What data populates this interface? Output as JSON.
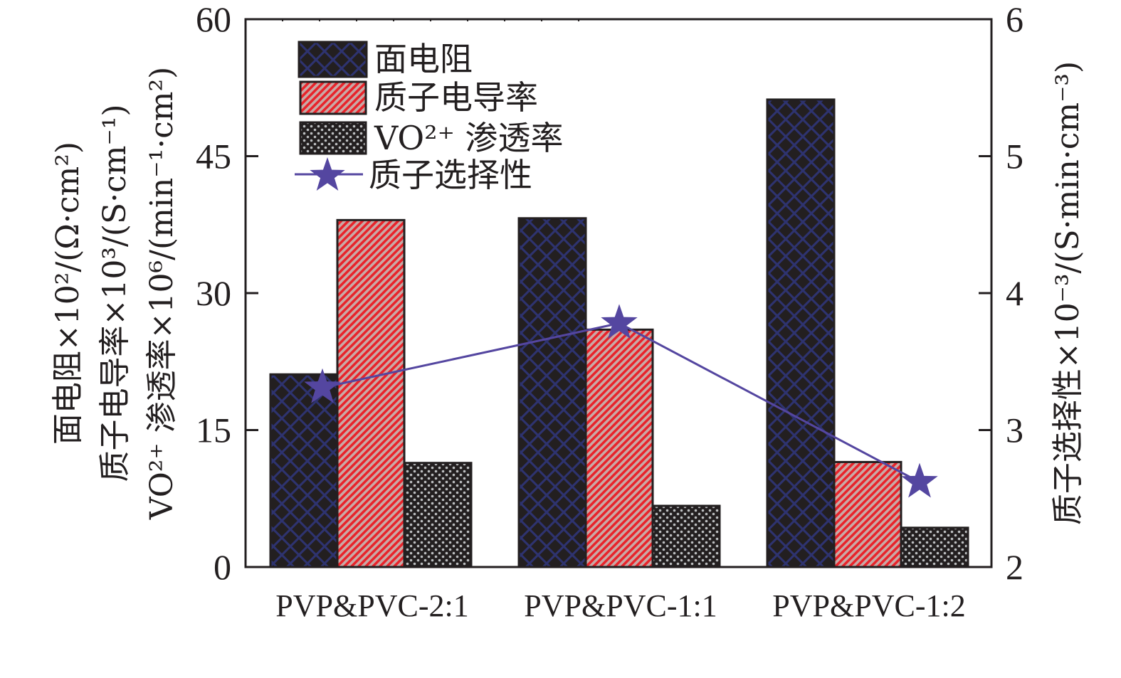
{
  "chart_data": {
    "type": "bar",
    "title": "",
    "categories": [
      "PVP&PVC-2:1",
      "PVP&PVC-1:1",
      "PVP&PVC-1:2"
    ],
    "series": [
      {
        "name": "面电阻",
        "axis": "left",
        "pattern": "crosshatch",
        "color": "#231f20",
        "pattern_color": "#2e3370",
        "values": [
          21.1,
          38.2,
          51.2
        ]
      },
      {
        "name": "质子电导率",
        "axis": "left",
        "pattern": "diagonal",
        "color": "#c9a9a6",
        "pattern_color": "#e8232a",
        "values": [
          38.0,
          26.0,
          11.5
        ]
      },
      {
        "name": "VO²⁺ 渗透率",
        "axis": "left",
        "pattern": "dots",
        "color": "#231f20",
        "pattern_color": "#bcbec0",
        "values": [
          11.4,
          6.7,
          4.3
        ]
      }
    ],
    "line_series": [
      {
        "name": "质子选择性",
        "axis": "right",
        "type": "line",
        "marker": "star",
        "color": "#5446a0",
        "values": [
          3.31,
          3.78,
          2.62
        ]
      }
    ],
    "ylim": [
      0,
      60
    ],
    "yticks": [
      "0",
      "15",
      "30",
      "45",
      "60"
    ],
    "ytick_values": [
      0,
      15,
      30,
      45,
      60
    ],
    "y2lim": [
      2,
      6
    ],
    "y2ticks": [
      "2",
      "3",
      "4",
      "5",
      "6"
    ],
    "y2tick_values": [
      2,
      3,
      4,
      5,
      6
    ],
    "xlabel": "",
    "ylabel_lines": [
      "面电阻×10²/(Ω·cm²)",
      "质子电导率×10³/(S·cm⁻¹)",
      "VO²⁺ 渗透率×10⁶/(min⁻¹·cm²)"
    ],
    "y2label": "质子选择性×10⁻³/(S·min·cm⁻³)",
    "legend": {
      "position": "top-left",
      "entries": [
        "面电阻",
        "质子电导率",
        "VO²⁺ 渗透率",
        "质子选择性"
      ]
    },
    "grid": false
  }
}
